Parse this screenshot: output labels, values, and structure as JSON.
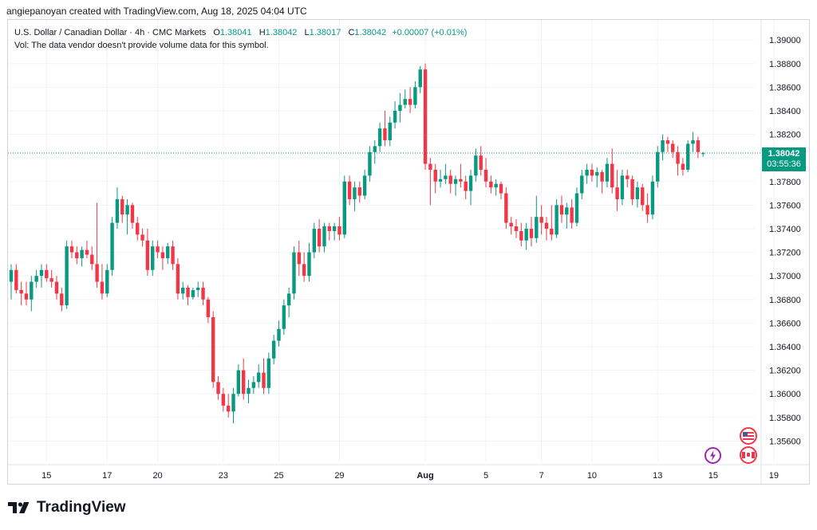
{
  "header": {
    "text": "angiepanoyan created with TradingView.com, Aug 18, 2025 04:04 UTC"
  },
  "legend": {
    "symbol": "U.S. Dollar / Canadian Dollar · 4h · CMC Markets",
    "open_label": "O",
    "open": "1.38041",
    "high_label": "H",
    "high": "1.38042",
    "low_label": "L",
    "low": "1.38017",
    "close_label": "C",
    "close": "1.38042",
    "change": "+0.00007 (+0.01%)",
    "volume_note": "Vol: The data vendor doesn't provide volume data for this symbol."
  },
  "price_tag": {
    "price": "1.38042",
    "countdown": "03:55:36"
  },
  "footer": {
    "brand": "TradingView"
  },
  "colors": {
    "up": "#089981",
    "down": "#f23645",
    "grid": "#f0f3fa",
    "text": "#131722"
  },
  "icons": [
    "us-flag-icon",
    "canada-flag-icon",
    "lightning-event-icon",
    "tradingview-logo-icon"
  ],
  "chart_data": {
    "type": "candlestick",
    "y_ticks": [
      "1.39000",
      "1.38800",
      "1.38600",
      "1.38400",
      "1.38200",
      "1.38000",
      "1.37800",
      "1.37600",
      "1.37400",
      "1.37200",
      "1.37000",
      "1.36800",
      "1.36600",
      "1.36400",
      "1.36200",
      "1.36000",
      "1.35800",
      "1.35600"
    ],
    "y_tick_values": [
      1.39,
      1.388,
      1.386,
      1.384,
      1.382,
      1.38,
      1.378,
      1.376,
      1.374,
      1.372,
      1.37,
      1.368,
      1.366,
      1.364,
      1.362,
      1.36,
      1.358,
      1.356
    ],
    "ylim": [
      1.3542,
      1.3917
    ],
    "x_ticks": [
      {
        "label": "15",
        "i": 7
      },
      {
        "label": "17",
        "i": 19
      },
      {
        "label": "20",
        "i": 29
      },
      {
        "label": "23",
        "i": 42
      },
      {
        "label": "25",
        "i": 53
      },
      {
        "label": "29",
        "i": 65
      },
      {
        "label": "Aug",
        "i": 82
      },
      {
        "label": "5",
        "i": 94
      },
      {
        "label": "7",
        "i": 105
      },
      {
        "label": "10",
        "i": 115
      },
      {
        "label": "13",
        "i": 128
      },
      {
        "label": "15",
        "i": 139
      },
      {
        "label": "19",
        "i": 151
      }
    ],
    "last_price": 1.38042,
    "candles": [
      [
        1.3695,
        1.371,
        1.368,
        1.3705
      ],
      [
        1.3705,
        1.371,
        1.3685,
        1.3688
      ],
      [
        1.3688,
        1.3695,
        1.3675,
        1.3685
      ],
      [
        1.3685,
        1.3695,
        1.3675,
        1.368
      ],
      [
        1.368,
        1.37,
        1.367,
        1.3695
      ],
      [
        1.3695,
        1.3705,
        1.369,
        1.37
      ],
      [
        1.37,
        1.371,
        1.369,
        1.3705
      ],
      [
        1.3705,
        1.371,
        1.3695,
        1.3698
      ],
      [
        1.3698,
        1.3705,
        1.369,
        1.3695
      ],
      [
        1.3695,
        1.37,
        1.368,
        1.3685
      ],
      [
        1.3685,
        1.369,
        1.367,
        1.3675
      ],
      [
        1.3675,
        1.373,
        1.3672,
        1.3725
      ],
      [
        1.3725,
        1.373,
        1.3715,
        1.372
      ],
      [
        1.372,
        1.3725,
        1.371,
        1.3715
      ],
      [
        1.3715,
        1.3725,
        1.3708,
        1.3722
      ],
      [
        1.3722,
        1.373,
        1.3715,
        1.3718
      ],
      [
        1.3718,
        1.3725,
        1.3705,
        1.371
      ],
      [
        1.371,
        1.3762,
        1.369,
        1.3695
      ],
      [
        1.3695,
        1.371,
        1.368,
        1.3685
      ],
      [
        1.3685,
        1.371,
        1.3682,
        1.3705
      ],
      [
        1.3705,
        1.375,
        1.37,
        1.3745
      ],
      [
        1.3745,
        1.3775,
        1.374,
        1.3765
      ],
      [
        1.3765,
        1.3768,
        1.3745,
        1.3752
      ],
      [
        1.3752,
        1.3765,
        1.3735,
        1.376
      ],
      [
        1.376,
        1.3762,
        1.374,
        1.3745
      ],
      [
        1.3745,
        1.375,
        1.373,
        1.3735
      ],
      [
        1.3735,
        1.374,
        1.3725,
        1.373
      ],
      [
        1.373,
        1.374,
        1.37,
        1.3705
      ],
      [
        1.3705,
        1.373,
        1.37,
        1.3725
      ],
      [
        1.3725,
        1.373,
        1.3715,
        1.372
      ],
      [
        1.372,
        1.3725,
        1.3705,
        1.3715
      ],
      [
        1.3715,
        1.3728,
        1.371,
        1.3725
      ],
      [
        1.3725,
        1.373,
        1.3705,
        1.371
      ],
      [
        1.371,
        1.3715,
        1.368,
        1.3685
      ],
      [
        1.3685,
        1.3695,
        1.368,
        1.369
      ],
      [
        1.369,
        1.3692,
        1.3675,
        1.3682
      ],
      [
        1.3682,
        1.369,
        1.368,
        1.3688
      ],
      [
        1.3688,
        1.3695,
        1.3682,
        1.369
      ],
      [
        1.369,
        1.3695,
        1.3675,
        1.368
      ],
      [
        1.368,
        1.3682,
        1.366,
        1.3665
      ],
      [
        1.3665,
        1.367,
        1.3605,
        1.361
      ],
      [
        1.361,
        1.3615,
        1.3595,
        1.36
      ],
      [
        1.36,
        1.3605,
        1.3585,
        1.359
      ],
      [
        1.359,
        1.36,
        1.358,
        1.3585
      ],
      [
        1.3585,
        1.3605,
        1.3575,
        1.36
      ],
      [
        1.36,
        1.3625,
        1.3598,
        1.362
      ],
      [
        1.362,
        1.363,
        1.3595,
        1.36
      ],
      [
        1.36,
        1.3612,
        1.3592,
        1.3605
      ],
      [
        1.3605,
        1.3615,
        1.36,
        1.361
      ],
      [
        1.361,
        1.3625,
        1.3605,
        1.3618
      ],
      [
        1.3618,
        1.363,
        1.36,
        1.3605
      ],
      [
        1.3605,
        1.3635,
        1.36,
        1.363
      ],
      [
        1.363,
        1.365,
        1.3625,
        1.3645
      ],
      [
        1.3645,
        1.3662,
        1.364,
        1.3655
      ],
      [
        1.3655,
        1.368,
        1.365,
        1.3675
      ],
      [
        1.3675,
        1.369,
        1.3665,
        1.3685
      ],
      [
        1.3685,
        1.3725,
        1.368,
        1.372
      ],
      [
        1.372,
        1.373,
        1.37,
        1.371
      ],
      [
        1.371,
        1.372,
        1.3695,
        1.37
      ],
      [
        1.37,
        1.3728,
        1.3695,
        1.372
      ],
      [
        1.372,
        1.3745,
        1.3715,
        1.374
      ],
      [
        1.374,
        1.3748,
        1.372,
        1.3725
      ],
      [
        1.3725,
        1.3745,
        1.372,
        1.3742
      ],
      [
        1.3742,
        1.3745,
        1.373,
        1.3738
      ],
      [
        1.3738,
        1.3745,
        1.373,
        1.3742
      ],
      [
        1.3742,
        1.375,
        1.373,
        1.3735
      ],
      [
        1.3735,
        1.3785,
        1.3732,
        1.378
      ],
      [
        1.378,
        1.3785,
        1.376,
        1.3765
      ],
      [
        1.3765,
        1.378,
        1.3755,
        1.3775
      ],
      [
        1.3775,
        1.378,
        1.3762,
        1.3768
      ],
      [
        1.3768,
        1.379,
        1.3765,
        1.3785
      ],
      [
        1.3785,
        1.381,
        1.378,
        1.3805
      ],
      [
        1.3805,
        1.3815,
        1.3795,
        1.381
      ],
      [
        1.381,
        1.383,
        1.3805,
        1.3825
      ],
      [
        1.3825,
        1.384,
        1.381,
        1.3815
      ],
      [
        1.3815,
        1.3835,
        1.381,
        1.383
      ],
      [
        1.383,
        1.3848,
        1.3825,
        1.384
      ],
      [
        1.384,
        1.3855,
        1.383,
        1.3845
      ],
      [
        1.3845,
        1.3858,
        1.3842,
        1.385
      ],
      [
        1.385,
        1.386,
        1.3838,
        1.3845
      ],
      [
        1.3845,
        1.3865,
        1.3842,
        1.386
      ],
      [
        1.386,
        1.3878,
        1.3855,
        1.3875
      ],
      [
        1.3875,
        1.388,
        1.379,
        1.3795
      ],
      [
        1.3795,
        1.38,
        1.376,
        1.379
      ],
      [
        1.379,
        1.3795,
        1.377,
        1.378
      ],
      [
        1.378,
        1.379,
        1.3775,
        1.3782
      ],
      [
        1.3782,
        1.3795,
        1.3778,
        1.3785
      ],
      [
        1.3785,
        1.379,
        1.377,
        1.3778
      ],
      [
        1.3778,
        1.3785,
        1.3768,
        1.3782
      ],
      [
        1.3782,
        1.3795,
        1.3775,
        1.378
      ],
      [
        1.378,
        1.3785,
        1.3765,
        1.3772
      ],
      [
        1.3772,
        1.379,
        1.376,
        1.3785
      ],
      [
        1.3785,
        1.3808,
        1.378,
        1.3802
      ],
      [
        1.3802,
        1.381,
        1.3785,
        1.379
      ],
      [
        1.379,
        1.38,
        1.3775,
        1.378
      ],
      [
        1.378,
        1.3785,
        1.377,
        1.3775
      ],
      [
        1.3775,
        1.3782,
        1.3768,
        1.3778
      ],
      [
        1.3778,
        1.378,
        1.3765,
        1.377
      ],
      [
        1.377,
        1.3775,
        1.374,
        1.3745
      ],
      [
        1.3745,
        1.375,
        1.3735,
        1.3742
      ],
      [
        1.3742,
        1.3748,
        1.3732,
        1.3738
      ],
      [
        1.3738,
        1.3745,
        1.3725,
        1.373
      ],
      [
        1.373,
        1.3745,
        1.3722,
        1.374
      ],
      [
        1.374,
        1.375,
        1.3725,
        1.3732
      ],
      [
        1.3732,
        1.3768,
        1.3728,
        1.375
      ],
      [
        1.375,
        1.376,
        1.3735,
        1.3745
      ],
      [
        1.3745,
        1.375,
        1.373,
        1.374
      ],
      [
        1.374,
        1.376,
        1.373,
        1.3735
      ],
      [
        1.3735,
        1.3765,
        1.3732,
        1.376
      ],
      [
        1.376,
        1.3768,
        1.3745,
        1.3752
      ],
      [
        1.3752,
        1.3762,
        1.374,
        1.3758
      ],
      [
        1.3758,
        1.3765,
        1.374,
        1.3745
      ],
      [
        1.3745,
        1.3775,
        1.3742,
        1.377
      ],
      [
        1.377,
        1.379,
        1.3765,
        1.3785
      ],
      [
        1.3785,
        1.3795,
        1.3778,
        1.379
      ],
      [
        1.379,
        1.3795,
        1.378,
        1.3785
      ],
      [
        1.3785,
        1.3792,
        1.3775,
        1.3788
      ],
      [
        1.3788,
        1.379,
        1.377,
        1.378
      ],
      [
        1.378,
        1.38,
        1.3775,
        1.3795
      ],
      [
        1.3795,
        1.3808,
        1.377,
        1.3775
      ],
      [
        1.3775,
        1.379,
        1.3755,
        1.3765
      ],
      [
        1.3765,
        1.379,
        1.376,
        1.3785
      ],
      [
        1.3785,
        1.379,
        1.3775,
        1.3782
      ],
      [
        1.3782,
        1.3785,
        1.376,
        1.3765
      ],
      [
        1.3765,
        1.378,
        1.3758,
        1.3775
      ],
      [
        1.3775,
        1.3778,
        1.3755,
        1.376
      ],
      [
        1.376,
        1.377,
        1.3745,
        1.3752
      ],
      [
        1.3752,
        1.3785,
        1.3748,
        1.378
      ],
      [
        1.378,
        1.381,
        1.3775,
        1.3805
      ],
      [
        1.3805,
        1.382,
        1.3798,
        1.3815
      ],
      [
        1.3815,
        1.3818,
        1.3805,
        1.3812
      ],
      [
        1.3812,
        1.3815,
        1.38,
        1.3805
      ],
      [
        1.3805,
        1.381,
        1.3785,
        1.3795
      ],
      [
        1.3795,
        1.38,
        1.3785,
        1.379
      ],
      [
        1.379,
        1.3815,
        1.3788,
        1.3812
      ],
      [
        1.3812,
        1.3822,
        1.3805,
        1.3815
      ],
      [
        1.3815,
        1.3818,
        1.38,
        1.3805
      ],
      [
        1.3804,
        1.3805,
        1.3801,
        1.3804
      ]
    ]
  }
}
